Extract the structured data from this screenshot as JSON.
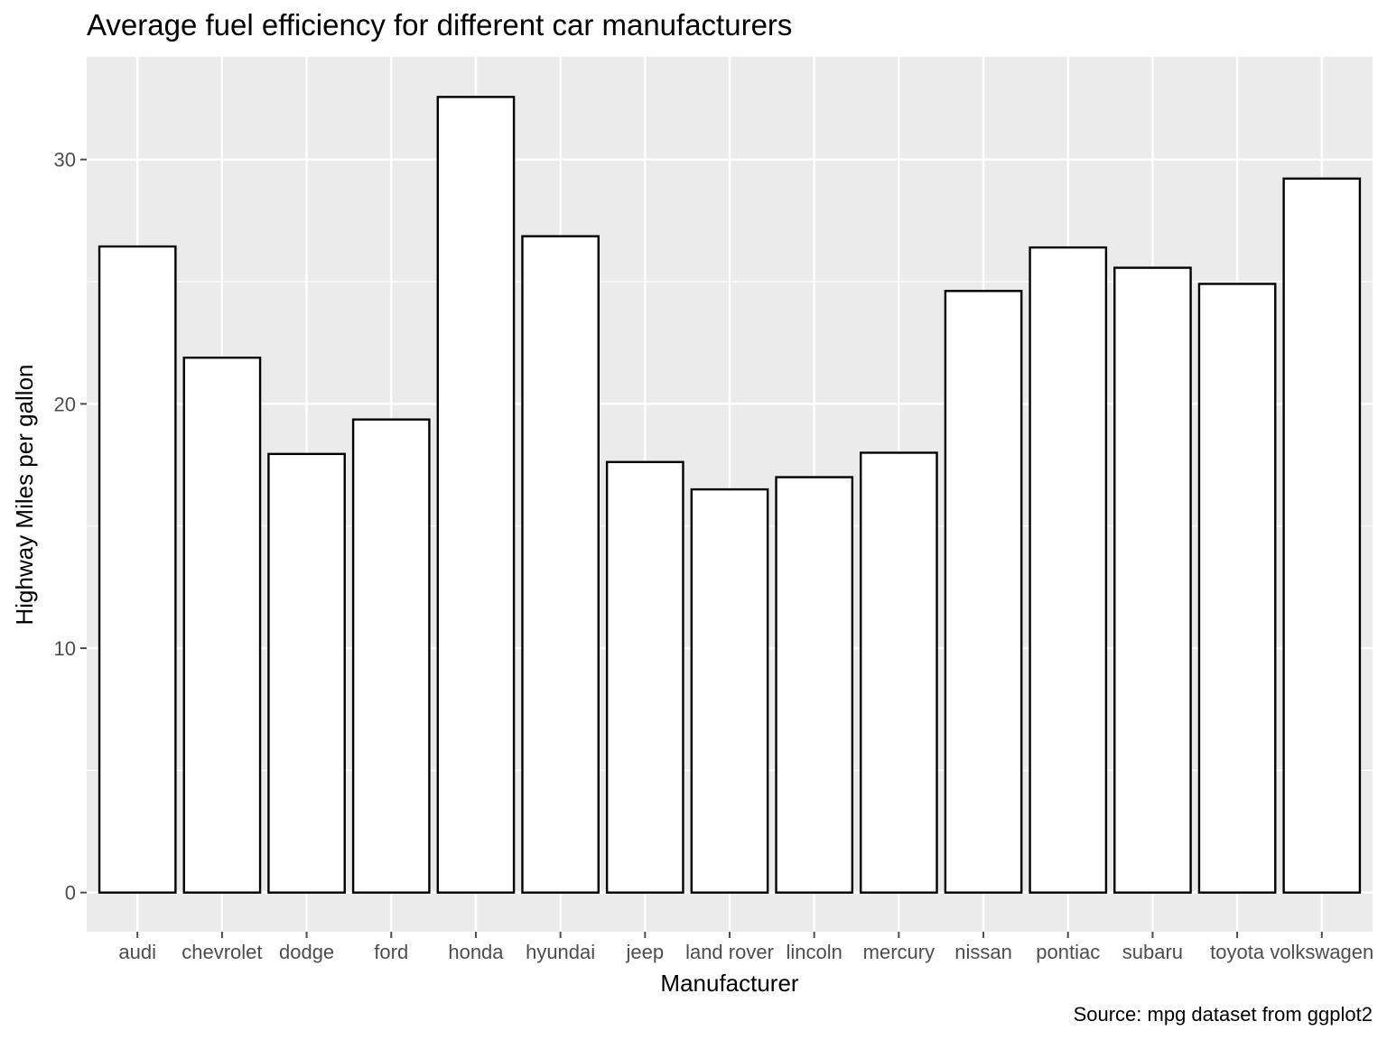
{
  "chart_data": {
    "type": "bar",
    "title": "Average fuel efficiency for different car manufacturers",
    "xlabel": "Manufacturer",
    "ylabel": "Highway Miles per gallon",
    "caption": "Source: mpg dataset from ggplot2",
    "categories": [
      "audi",
      "chevrolet",
      "dodge",
      "ford",
      "honda",
      "hyundai",
      "jeep",
      "land rover",
      "lincoln",
      "mercury",
      "nissan",
      "pontiac",
      "subaru",
      "toyota",
      "volkswagen"
    ],
    "values": [
      26.44,
      21.89,
      17.95,
      19.36,
      32.56,
      26.86,
      17.62,
      16.5,
      17.0,
      18.0,
      24.62,
      26.4,
      25.57,
      24.91,
      29.22
    ],
    "yticks": [
      "0",
      "10",
      "20",
      "30"
    ],
    "ylim": [
      -1.6,
      34.2
    ],
    "grid": true,
    "legend": "none",
    "colors": {
      "panel": "#ebebeb",
      "grid": "#ffffff",
      "bar_fill": "#ffffff",
      "bar_stroke": "#000000",
      "tick": "#4d4d4d"
    }
  }
}
